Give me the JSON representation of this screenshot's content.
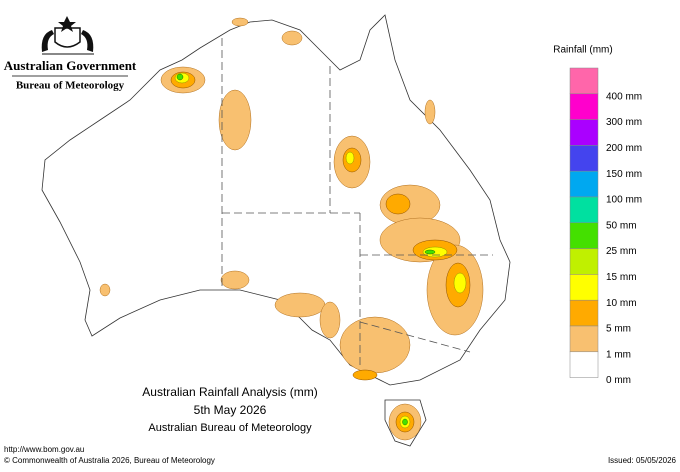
{
  "header": {
    "government": "Australian Government",
    "agency": "Bureau of Meteorology"
  },
  "legend": {
    "title": "Rainfall (mm)",
    "items": [
      {
        "label": "400 mm",
        "color": "#ff66aa"
      },
      {
        "label": "300 mm",
        "color": "#ff00cc"
      },
      {
        "label": "200 mm",
        "color": "#aa00ff"
      },
      {
        "label": "150 mm",
        "color": "#4444ee"
      },
      {
        "label": "100 mm",
        "color": "#00a8f0"
      },
      {
        "label": "50 mm",
        "color": "#00e0a0"
      },
      {
        "label": "25 mm",
        "color": "#44e000"
      },
      {
        "label": "15 mm",
        "color": "#c0f000"
      },
      {
        "label": "10 mm",
        "color": "#ffff00"
      },
      {
        "label": "5 mm",
        "color": "#ffaa00"
      },
      {
        "label": "1 mm",
        "color": "#f8c070"
      },
      {
        "label": "0 mm",
        "color": "#ffffff"
      }
    ]
  },
  "map_title": {
    "line1": "Australian Rainfall Analysis (mm)",
    "line2": "5th May 2026",
    "line3": "Australian Bureau of Meteorology"
  },
  "footer": {
    "url": "http://www.bom.gov.au",
    "copyright": "© Commonwealth of Australia 2026, Bureau of Meteorology",
    "issued": "Issued: 05/05/2026"
  }
}
